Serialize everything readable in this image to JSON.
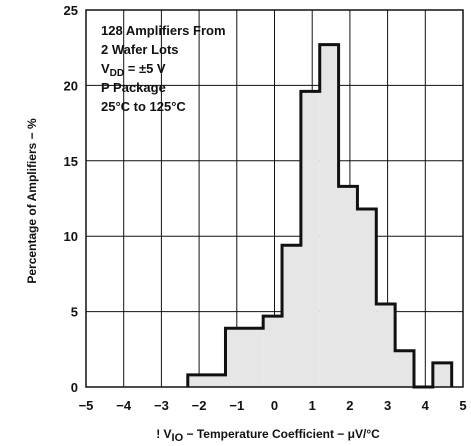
{
  "chart_data": {
    "type": "histogram",
    "title": "",
    "xlabel": {
      "prefix": "! V",
      "subscript": "IO",
      "suffix": " − Temperature Coefficient − μV/°C"
    },
    "ylabel": "Percentage of Amplifiers − %",
    "xlim": [
      -5,
      5
    ],
    "ylim": [
      0,
      25
    ],
    "x_ticks": [
      -5,
      -4,
      -3,
      -2,
      -1,
      0,
      1,
      2,
      3,
      4,
      5
    ],
    "x_tick_labels": [
      "−5",
      "−4",
      "−3",
      "−2",
      "−1",
      "0",
      "1",
      "2",
      "3",
      "4",
      "5"
    ],
    "y_ticks": [
      0,
      5,
      10,
      15,
      20,
      25
    ],
    "y_tick_labels": [
      "0",
      "5",
      "10",
      "15",
      "20",
      "25"
    ],
    "grid": true,
    "fill_color": "#e6e6e6",
    "line_color": "#111111",
    "bins": [
      {
        "x0": -2.3,
        "x1": -1.8,
        "value": 0.8
      },
      {
        "x0": -1.8,
        "x1": -1.3,
        "value": 0.8
      },
      {
        "x0": -1.3,
        "x1": -0.8,
        "value": 3.9
      },
      {
        "x0": -0.8,
        "x1": -0.3,
        "value": 3.9
      },
      {
        "x0": -0.3,
        "x1": 0.2,
        "value": 4.7
      },
      {
        "x0": 0.2,
        "x1": 0.7,
        "value": 9.4
      },
      {
        "x0": 0.7,
        "x1": 1.2,
        "value": 19.6
      },
      {
        "x0": 1.2,
        "x1": 1.7,
        "value": 22.7
      },
      {
        "x0": 1.7,
        "x1": 2.2,
        "value": 13.3
      },
      {
        "x0": 2.2,
        "x1": 2.7,
        "value": 11.8
      },
      {
        "x0": 2.7,
        "x1": 3.2,
        "value": 5.5
      },
      {
        "x0": 3.2,
        "x1": 3.7,
        "value": 2.4
      },
      {
        "x0": 3.7,
        "x1": 4.2,
        "value": 0
      },
      {
        "x0": 4.2,
        "x1": 4.7,
        "value": 1.6
      }
    ],
    "annotation": {
      "line1": "128 Amplifiers From",
      "line2": "2 Wafer Lots",
      "line3_prefix": "V",
      "line3_subscript": "DD",
      "line3_suffix": " = ±5 V",
      "line4": "P Package",
      "line5": "25°C to 125°C"
    }
  }
}
